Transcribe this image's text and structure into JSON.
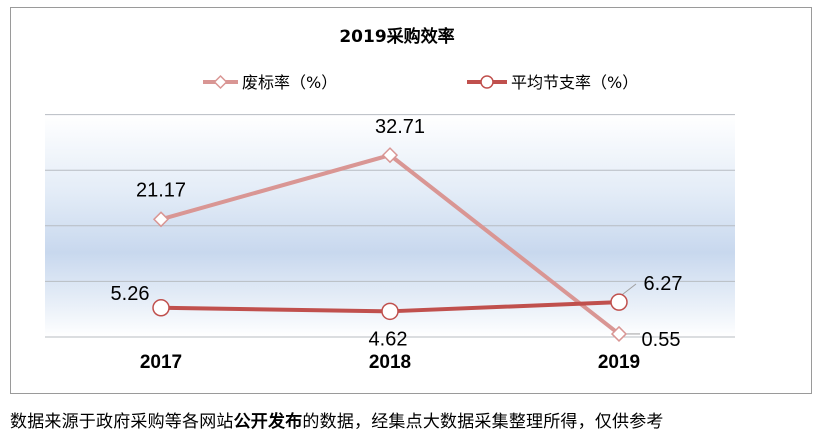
{
  "chart_data": {
    "type": "line",
    "title": "2019采购效率",
    "categories": [
      "2017",
      "2018",
      "2019"
    ],
    "series": [
      {
        "name": "废标率（%）",
        "values": [
          21.17,
          32.71,
          0.55
        ],
        "color": "#d99694",
        "marker": "diamond"
      },
      {
        "name": "平均节支率（%）",
        "values": [
          5.26,
          4.62,
          6.27
        ],
        "color": "#c0504d",
        "marker": "circle"
      }
    ],
    "data_labels": {
      "s0": [
        "21.17",
        "32.71",
        "0.55"
      ],
      "s1": [
        "5.26",
        "4.62",
        "6.27"
      ]
    },
    "ylim": [
      0,
      40
    ],
    "grid": true,
    "legend": "top"
  },
  "caption": {
    "part1": "数据来源于政府采购等各网站",
    "bold": "公开发布",
    "part2": "的数据，经集点大数据采集整理所得，仅供参考"
  }
}
